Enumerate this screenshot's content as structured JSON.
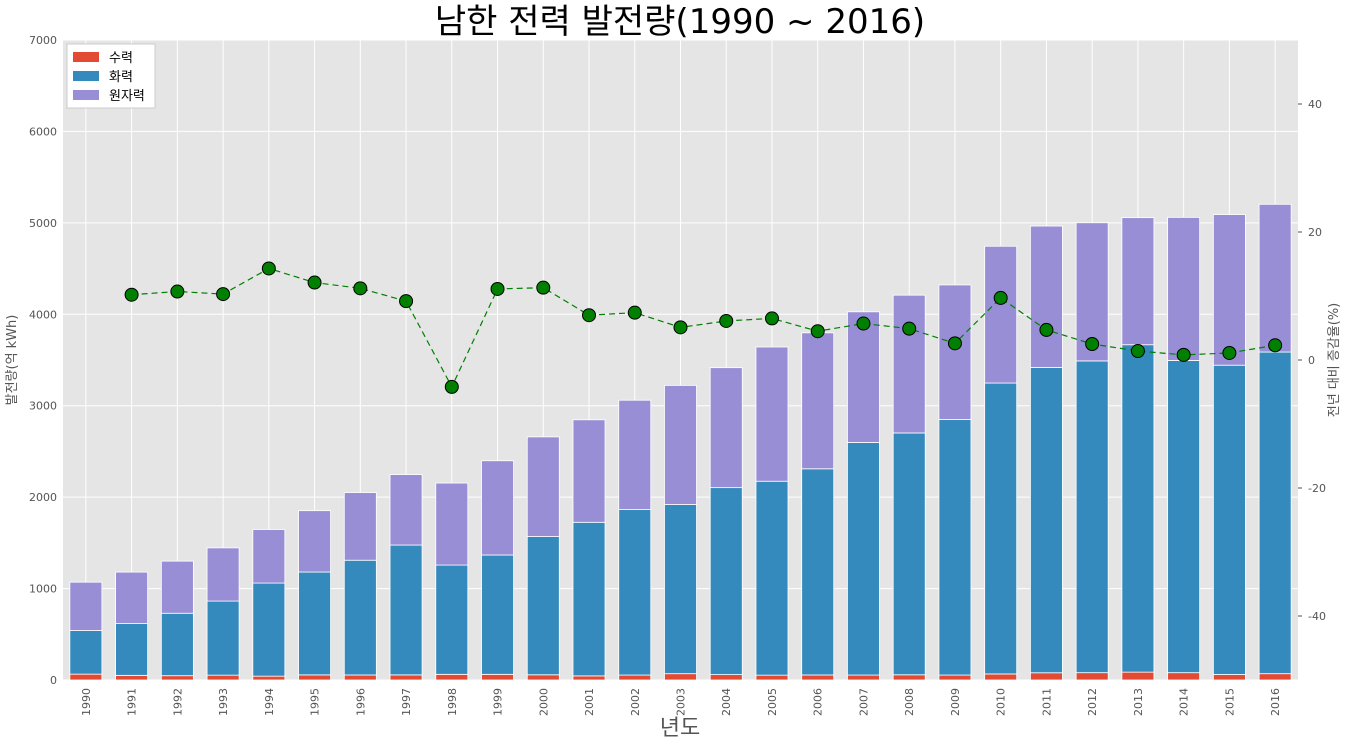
{
  "chart_data": {
    "type": "bar",
    "stacked": true,
    "title": "남한 전력 발전량(1990 ~ 2016)",
    "xlabel": "년도",
    "ylabel": "발전량(억 kWh)",
    "y2label": "전년 대비 증감율(%)",
    "ylim": [
      0,
      7000
    ],
    "y2lim": [
      -50,
      50
    ],
    "yticks": [
      0,
      1000,
      2000,
      3000,
      4000,
      5000,
      6000,
      7000
    ],
    "y2ticks": [
      -40,
      -20,
      0,
      20,
      40
    ],
    "grid": true,
    "legend_position": "top-left",
    "categories": [
      "1990",
      "1991",
      "1992",
      "1993",
      "1994",
      "1995",
      "1996",
      "1997",
      "1998",
      "1999",
      "2000",
      "2001",
      "2002",
      "2003",
      "2004",
      "2005",
      "2006",
      "2007",
      "2008",
      "2009",
      "2010",
      "2011",
      "2012",
      "2013",
      "2014",
      "2015",
      "2016"
    ],
    "series": [
      {
        "name": "수력",
        "color": "#E24A33",
        "values": [
          64,
          51,
          47,
          53,
          42,
          56,
          55,
          56,
          62,
          62,
          57,
          45,
          54,
          69,
          59,
          53,
          55,
          54,
          57,
          54,
          66,
          79,
          80,
          86,
          80,
          60,
          69
        ]
      },
      {
        "name": "화력",
        "color": "#348ABD",
        "values": [
          477,
          566,
          683,
          810,
          1018,
          1125,
          1255,
          1420,
          1195,
          1305,
          1512,
          1680,
          1810,
          1850,
          2045,
          2121,
          2255,
          2544,
          2645,
          2795,
          3182,
          3339,
          3410,
          3581,
          3415,
          3383,
          3518
        ]
      },
      {
        "name": "원자력",
        "color": "#988ED5",
        "values": [
          529,
          563,
          570,
          582,
          586,
          671,
          740,
          771,
          897,
          1031,
          1090,
          1121,
          1196,
          1303,
          1312,
          1468,
          1487,
          1429,
          1507,
          1472,
          1496,
          1547,
          1511,
          1390,
          1565,
          1648,
          1616
        ]
      }
    ],
    "line": {
      "name": "전년 대비 증감율(%)",
      "axis": "right",
      "color": "#008000",
      "style": "dashed",
      "marker": "circle",
      "values": [
        null,
        10.2,
        10.7,
        10.3,
        14.3,
        12.1,
        11.2,
        9.2,
        -4.2,
        11.1,
        11.3,
        7.0,
        7.4,
        5.1,
        6.1,
        6.5,
        4.5,
        5.7,
        4.9,
        2.6,
        9.7,
        4.7,
        2.5,
        1.4,
        0.8,
        1.1,
        2.3
      ]
    }
  }
}
